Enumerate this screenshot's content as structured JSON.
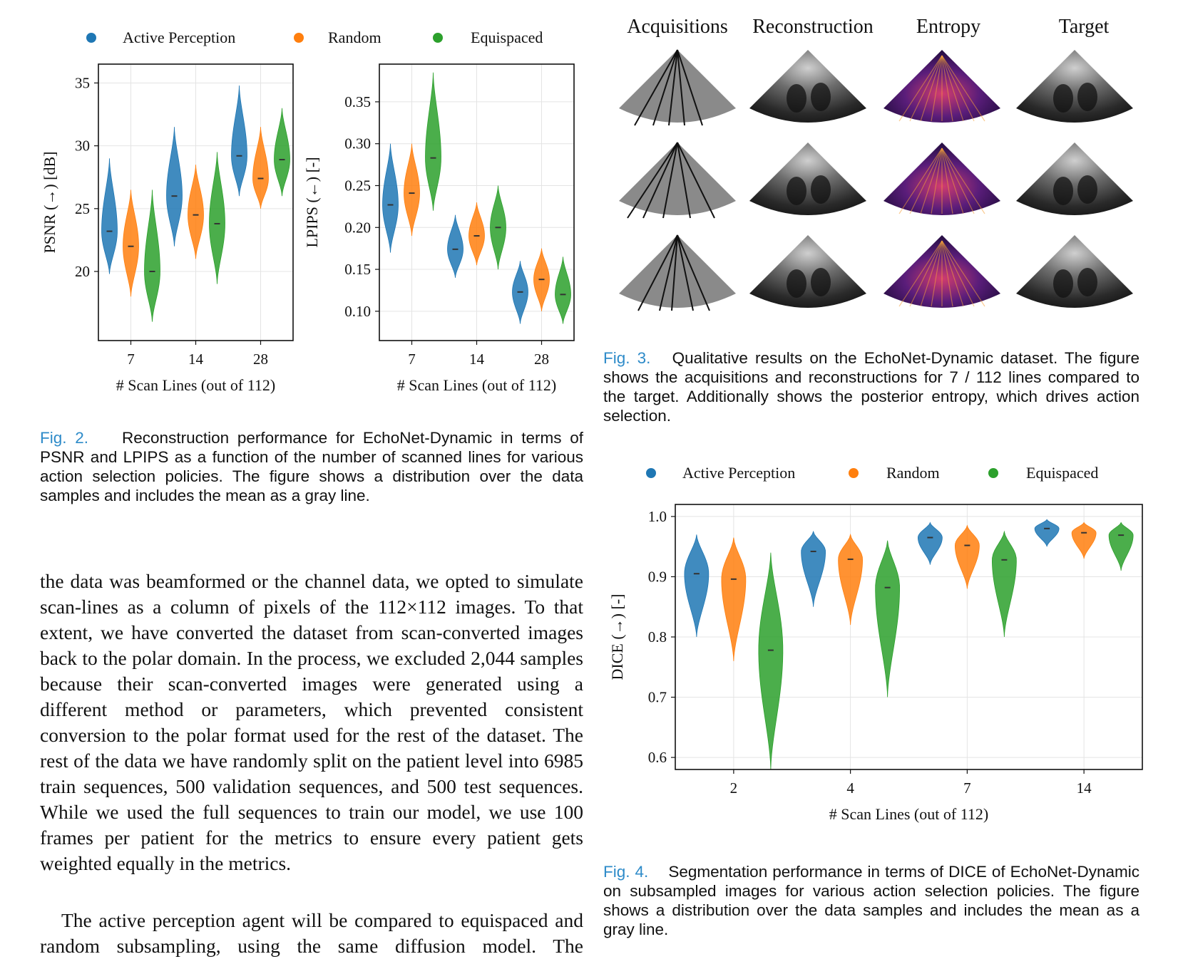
{
  "colors": {
    "active": "#1f77b4",
    "random": "#ff7f0e",
    "equispaced": "#2ca02c",
    "caption_label": "#2e8bc9"
  },
  "legend": [
    "Active Perception",
    "Random",
    "Equispaced"
  ],
  "fig2": {
    "label": "Fig. 2.",
    "text": "Reconstruction performance for EchoNet-Dynamic in terms of PSNR and LPIPS as a function of the number of scanned lines for various action selection policies. The figure shows a distribution over the data samples and includes the mean as a gray line."
  },
  "fig3": {
    "label": "Fig. 3.",
    "text": "Qualitative results on the EchoNet-Dynamic dataset. The figure shows the acquisitions and reconstructions for 7 / 112 lines compared to the target. Additionally shows the posterior entropy, which drives action selection.",
    "columns": [
      "Acquisitions",
      "Reconstruction",
      "Entropy",
      "Target"
    ]
  },
  "fig4": {
    "label": "Fig. 4.",
    "text": "Segmentation performance in terms of DICE of EchoNet-Dynamic on subsampled images for various action selection policies. The figure shows a distribution over the data samples and includes the mean as a gray line."
  },
  "body": {
    "p1": "the data was beamformed or the channel data, we opted to simulate scan-lines as a column of pixels of the 112×112 images. To that extent, we have converted the dataset from scan-converted images back to the polar domain. In the process, we excluded 2,044 samples because their scan-converted images were generated using a different method or parameters, which prevented consistent conversion to the polar format used for the rest of the dataset. The rest of the data we have randomly split on the patient level into 6985 train sequences, 500 validation sequences, and 500 test sequences. While we used the full sequences to train our model, we use 100 frames per patient for the metrics to ensure every patient gets weighted equally in the metrics.",
    "p2": "The active perception agent will be compared to equispaced and random subsampling, using the same diffusion model. The"
  },
  "chart_data": [
    {
      "type": "violin",
      "xlabel": "# Scan Lines (out of 112)",
      "ylabel": "PSNR (→) [dB]",
      "categories": [
        "7",
        "14",
        "28"
      ],
      "ylim": [
        14.5,
        36.5
      ],
      "yticks": [
        20,
        25,
        30,
        35
      ],
      "series": [
        {
          "name": "Active Perception",
          "mean": [
            23.2,
            26.0,
            29.2
          ],
          "min": [
            19.8,
            22.0,
            26.0
          ],
          "max": [
            29.0,
            31.5,
            34.8
          ]
        },
        {
          "name": "Random",
          "mean": [
            22.0,
            24.5,
            27.4
          ],
          "min": [
            18.0,
            21.0,
            25.0
          ],
          "max": [
            26.5,
            28.5,
            31.5
          ]
        },
        {
          "name": "Equispaced",
          "mean": [
            20.0,
            23.8,
            28.9
          ],
          "min": [
            16.0,
            19.0,
            26.0
          ],
          "max": [
            26.5,
            29.5,
            33.0
          ]
        }
      ]
    },
    {
      "type": "violin",
      "xlabel": "# Scan Lines (out of 112)",
      "ylabel": "LPIPS (←) [-]",
      "categories": [
        "7",
        "14",
        "28"
      ],
      "ylim": [
        0.065,
        0.395
      ],
      "yticks": [
        0.1,
        0.15,
        0.2,
        0.25,
        0.3,
        0.35
      ],
      "series": [
        {
          "name": "Active Perception",
          "mean": [
            0.227,
            0.174,
            0.123
          ],
          "min": [
            0.17,
            0.14,
            0.085
          ],
          "max": [
            0.3,
            0.215,
            0.16
          ]
        },
        {
          "name": "Random",
          "mean": [
            0.241,
            0.19,
            0.138
          ],
          "min": [
            0.19,
            0.155,
            0.1
          ],
          "max": [
            0.3,
            0.23,
            0.175
          ]
        },
        {
          "name": "Equispaced",
          "mean": [
            0.283,
            0.2,
            0.12
          ],
          "min": [
            0.22,
            0.15,
            0.085
          ],
          "max": [
            0.385,
            0.25,
            0.165
          ]
        }
      ]
    },
    {
      "type": "violin",
      "xlabel": "# Scan Lines (out of 112)",
      "ylabel": "DICE (→) [-]",
      "categories": [
        "2",
        "4",
        "7",
        "14"
      ],
      "ylim": [
        0.58,
        1.02
      ],
      "yticks": [
        0.6,
        0.7,
        0.8,
        0.9,
        1.0
      ],
      "series": [
        {
          "name": "Active Perception",
          "mean": [
            0.905,
            0.942,
            0.965,
            0.98
          ],
          "min": [
            0.8,
            0.85,
            0.92,
            0.95
          ],
          "max": [
            0.97,
            0.975,
            0.99,
            0.995
          ]
        },
        {
          "name": "Random",
          "mean": [
            0.896,
            0.929,
            0.952,
            0.973
          ],
          "min": [
            0.76,
            0.82,
            0.88,
            0.93
          ],
          "max": [
            0.965,
            0.97,
            0.985,
            0.99
          ]
        },
        {
          "name": "Equispaced",
          "mean": [
            0.778,
            0.882,
            0.928,
            0.969
          ],
          "min": [
            0.58,
            0.7,
            0.8,
            0.91
          ],
          "max": [
            0.94,
            0.96,
            0.975,
            0.99
          ]
        }
      ]
    }
  ]
}
